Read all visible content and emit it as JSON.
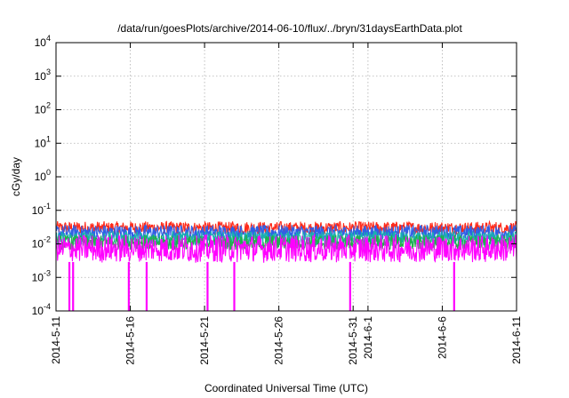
{
  "chart_data": {
    "type": "line",
    "title": "/data/run/goesPlots/archive/2014-06-10/flux/../bryn/31daysEarthData.plot",
    "xlabel": "Coordinated Universal Time (UTC)",
    "ylabel": "cGy/day",
    "yscale": "log",
    "ylim": [
      0.0001,
      10000
    ],
    "xlim": [
      "2014-05-11",
      "2014-06-11"
    ],
    "grid": true,
    "y_ticks": [
      {
        "value": 0.0001,
        "base": "10",
        "exp": "-4"
      },
      {
        "value": 0.001,
        "base": "10",
        "exp": "-3"
      },
      {
        "value": 0.01,
        "base": "10",
        "exp": "-2"
      },
      {
        "value": 0.1,
        "base": "10",
        "exp": "-1"
      },
      {
        "value": 1,
        "base": "10",
        "exp": "0"
      },
      {
        "value": 10,
        "base": "10",
        "exp": "1"
      },
      {
        "value": 100,
        "base": "10",
        "exp": "2"
      },
      {
        "value": 1000,
        "base": "10",
        "exp": "3"
      },
      {
        "value": 10000,
        "base": "10",
        "exp": "4"
      }
    ],
    "x_ticks": [
      {
        "day": 0,
        "label": "2014-5-11"
      },
      {
        "day": 5,
        "label": "2014-5-16"
      },
      {
        "day": 10,
        "label": "2014-5-21"
      },
      {
        "day": 15,
        "label": "2014-5-26"
      },
      {
        "day": 20,
        "label": "2014-5-31"
      },
      {
        "day": 21,
        "label": "2014-6-1"
      },
      {
        "day": 26,
        "label": "2014-6-6"
      },
      {
        "day": 31,
        "label": "2014-6-11"
      }
    ],
    "series": [
      {
        "color": "#ff2a1a",
        "min": 0.018,
        "max": 0.05
      },
      {
        "color": "#2f5fe6",
        "min": 0.012,
        "max": 0.04
      },
      {
        "color": "#1ab0b0",
        "min": 0.008,
        "max": 0.026
      },
      {
        "color": "#22b04a",
        "min": 0.006,
        "max": 0.02
      },
      {
        "color": "#ff00ff",
        "min": 0.0024,
        "max": 0.022
      }
    ],
    "magenta_dropouts": [
      {
        "day": 0.9,
        "value": 0.0001
      },
      {
        "day": 1.15,
        "value": 0.0001
      },
      {
        "day": 4.9,
        "value": 0.0001
      },
      {
        "day": 6.1,
        "value": 0.0001
      },
      {
        "day": 10.2,
        "value": 0.0001
      },
      {
        "day": 12.0,
        "value": 0.0001
      },
      {
        "day": 19.8,
        "value": 0.0001
      },
      {
        "day": 26.8,
        "value": 0.0001
      }
    ]
  }
}
